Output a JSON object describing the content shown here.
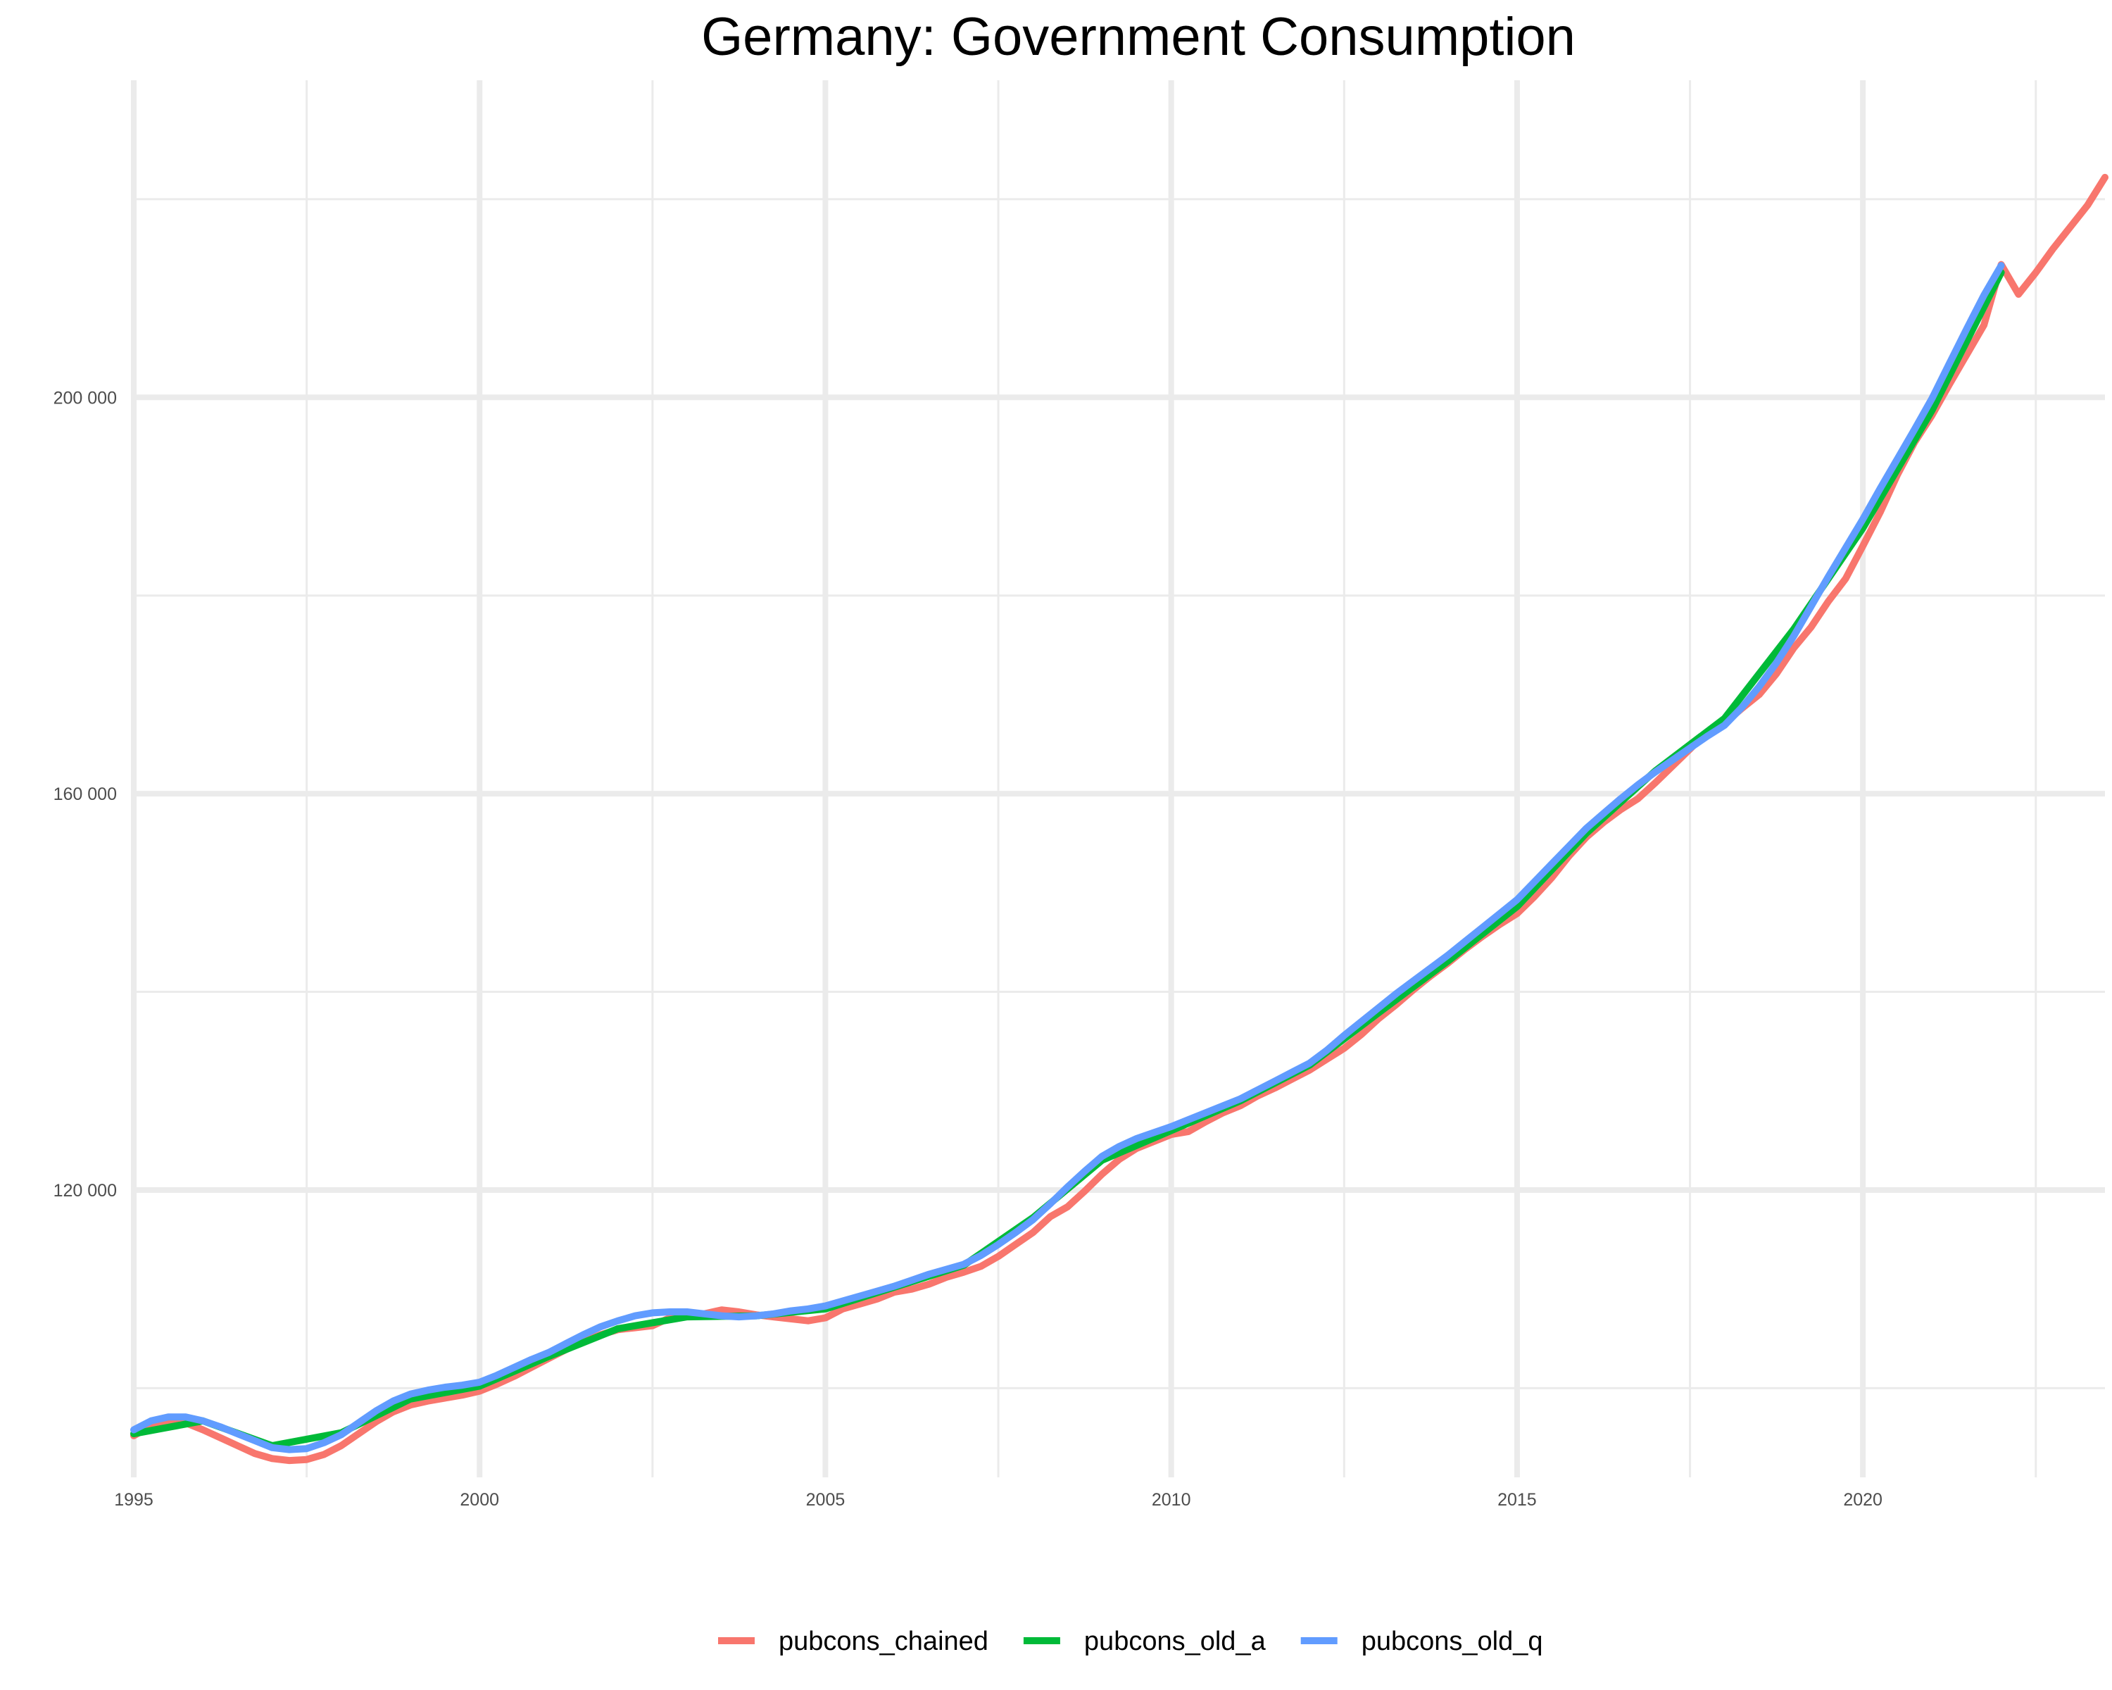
{
  "chart_data": {
    "type": "line",
    "title": "Germany: Government Consumption",
    "xlabel": "",
    "ylabel": "",
    "xlim": [
      1995,
      2023.5
    ],
    "ylim": [
      91000,
      232000
    ],
    "x_ticks": [
      1995,
      2000,
      2005,
      2010,
      2015,
      2020
    ],
    "x_tick_labels": [
      "1995",
      "2000",
      "2005",
      "2010",
      "2015",
      "2020"
    ],
    "x_minor_ticks": [
      1997.5,
      2002.5,
      2007.5,
      2012.5,
      2017.5,
      2022.5
    ],
    "y_ticks": [
      120000,
      160000,
      200000
    ],
    "y_tick_labels": [
      "120 000",
      "160 000",
      "200 000"
    ],
    "y_minor_ticks": [
      100000,
      140000,
      180000,
      220000
    ],
    "grid": true,
    "legend_position": "bottom",
    "series": [
      {
        "name": "pubcons_chained",
        "color": "#F8766D",
        "points": [
          [
            1995.0,
            95200
          ],
          [
            1995.25,
            96200
          ],
          [
            1995.5,
            96800
          ],
          [
            1995.75,
            96500
          ],
          [
            1996.0,
            95800
          ],
          [
            1996.25,
            95000
          ],
          [
            1996.5,
            94200
          ],
          [
            1996.75,
            93400
          ],
          [
            1997.0,
            92900
          ],
          [
            1997.25,
            92700
          ],
          [
            1997.5,
            92800
          ],
          [
            1997.75,
            93300
          ],
          [
            1998.0,
            94200
          ],
          [
            1998.25,
            95400
          ],
          [
            1998.5,
            96600
          ],
          [
            1998.75,
            97600
          ],
          [
            1999.0,
            98300
          ],
          [
            1999.25,
            98700
          ],
          [
            1999.5,
            99000
          ],
          [
            1999.75,
            99300
          ],
          [
            2000.0,
            99700
          ],
          [
            2000.25,
            100400
          ],
          [
            2000.5,
            101200
          ],
          [
            2000.75,
            102100
          ],
          [
            2001.0,
            103000
          ],
          [
            2001.25,
            103900
          ],
          [
            2001.5,
            104700
          ],
          [
            2001.75,
            105400
          ],
          [
            2002.0,
            105900
          ],
          [
            2002.25,
            106100
          ],
          [
            2002.5,
            106300
          ],
          [
            2002.75,
            107100
          ],
          [
            2003.0,
            107300
          ],
          [
            2003.25,
            107500
          ],
          [
            2003.5,
            107900
          ],
          [
            2003.75,
            107700
          ],
          [
            2004.0,
            107400
          ],
          [
            2004.25,
            107200
          ],
          [
            2004.5,
            107000
          ],
          [
            2004.75,
            106800
          ],
          [
            2005.0,
            107100
          ],
          [
            2005.25,
            108000
          ],
          [
            2005.5,
            108500
          ],
          [
            2005.75,
            109000
          ],
          [
            2006.0,
            109700
          ],
          [
            2006.25,
            110000
          ],
          [
            2006.5,
            110500
          ],
          [
            2006.75,
            111200
          ],
          [
            2007.0,
            111700
          ],
          [
            2007.25,
            112300
          ],
          [
            2007.5,
            113300
          ],
          [
            2007.75,
            114500
          ],
          [
            2008.0,
            115700
          ],
          [
            2008.25,
            117300
          ],
          [
            2008.5,
            118300
          ],
          [
            2008.75,
            119900
          ],
          [
            2009.0,
            121600
          ],
          [
            2009.25,
            123100
          ],
          [
            2009.5,
            124200
          ],
          [
            2009.75,
            124900
          ],
          [
            2010.0,
            125600
          ],
          [
            2010.25,
            125900
          ],
          [
            2010.5,
            126900
          ],
          [
            2010.75,
            127800
          ],
          [
            2011.0,
            128500
          ],
          [
            2011.25,
            129500
          ],
          [
            2011.5,
            130300
          ],
          [
            2011.75,
            131200
          ],
          [
            2012.0,
            132100
          ],
          [
            2012.25,
            133200
          ],
          [
            2012.5,
            134300
          ],
          [
            2012.75,
            135700
          ],
          [
            2013.0,
            137300
          ],
          [
            2013.25,
            138700
          ],
          [
            2013.5,
            140200
          ],
          [
            2013.75,
            141600
          ],
          [
            2014.0,
            142900
          ],
          [
            2014.25,
            144300
          ],
          [
            2014.5,
            145600
          ],
          [
            2014.75,
            146800
          ],
          [
            2015.0,
            147900
          ],
          [
            2015.25,
            149600
          ],
          [
            2015.5,
            151500
          ],
          [
            2015.75,
            153700
          ],
          [
            2016.0,
            155600
          ],
          [
            2016.25,
            157100
          ],
          [
            2016.5,
            158400
          ],
          [
            2016.75,
            159500
          ],
          [
            2017.0,
            161100
          ],
          [
            2017.25,
            162800
          ],
          [
            2017.5,
            164500
          ],
          [
            2017.75,
            166200
          ],
          [
            2018.0,
            167100
          ],
          [
            2018.25,
            168600
          ],
          [
            2018.5,
            170000
          ],
          [
            2018.75,
            172100
          ],
          [
            2019.0,
            174700
          ],
          [
            2019.25,
            176800
          ],
          [
            2019.5,
            179400
          ],
          [
            2019.75,
            181700
          ],
          [
            2020.0,
            185000
          ],
          [
            2020.25,
            188400
          ],
          [
            2020.5,
            192200
          ],
          [
            2020.75,
            195500
          ],
          [
            2021.0,
            198200
          ],
          [
            2021.25,
            201300
          ],
          [
            2021.5,
            204300
          ],
          [
            2021.75,
            207300
          ],
          [
            2022.0,
            213400
          ],
          [
            2022.25,
            210400
          ],
          [
            2022.5,
            212600
          ],
          [
            2022.75,
            215000
          ],
          [
            2023.0,
            217200
          ],
          [
            2023.25,
            219400
          ],
          [
            2023.5,
            222200
          ]
        ]
      },
      {
        "name": "pubcons_old_a",
        "color": "#00BA38",
        "points": [
          [
            1995.0,
            95400
          ],
          [
            1996.0,
            96700
          ],
          [
            1997.0,
            94200
          ],
          [
            1998.0,
            95500
          ],
          [
            1999.0,
            98900
          ],
          [
            2000.0,
            100200
          ],
          [
            2001.0,
            103200
          ],
          [
            2002.0,
            106000
          ],
          [
            2003.0,
            107200
          ],
          [
            2004.0,
            107300
          ],
          [
            2005.0,
            108000
          ],
          [
            2006.0,
            110200
          ],
          [
            2007.0,
            112400
          ],
          [
            2008.0,
            117200
          ],
          [
            2009.0,
            123000
          ],
          [
            2010.0,
            126000
          ],
          [
            2011.0,
            129000
          ],
          [
            2012.0,
            132600
          ],
          [
            2013.0,
            137900
          ],
          [
            2014.0,
            143100
          ],
          [
            2015.0,
            148600
          ],
          [
            2016.0,
            156000
          ],
          [
            2017.0,
            162300
          ],
          [
            2018.0,
            167600
          ],
          [
            2019.0,
            176600
          ],
          [
            2020.0,
            186800
          ],
          [
            2021.0,
            198700
          ],
          [
            2022.0,
            212600
          ]
        ]
      },
      {
        "name": "pubcons_old_q",
        "color": "#619CFF",
        "points": [
          [
            1995.0,
            95800
          ],
          [
            1995.25,
            96700
          ],
          [
            1995.5,
            97100
          ],
          [
            1995.75,
            97100
          ],
          [
            1996.0,
            96700
          ],
          [
            1996.25,
            96100
          ],
          [
            1996.5,
            95400
          ],
          [
            1996.75,
            94700
          ],
          [
            1997.0,
            94000
          ],
          [
            1997.25,
            93800
          ],
          [
            1997.5,
            93900
          ],
          [
            1997.75,
            94500
          ],
          [
            1998.0,
            95300
          ],
          [
            1998.25,
            96500
          ],
          [
            1998.5,
            97700
          ],
          [
            1998.75,
            98700
          ],
          [
            1999.0,
            99400
          ],
          [
            1999.25,
            99800
          ],
          [
            1999.5,
            100100
          ],
          [
            1999.75,
            100300
          ],
          [
            2000.0,
            100600
          ],
          [
            2000.25,
            101300
          ],
          [
            2000.5,
            102100
          ],
          [
            2000.75,
            102900
          ],
          [
            2001.0,
            103600
          ],
          [
            2001.25,
            104500
          ],
          [
            2001.5,
            105400
          ],
          [
            2001.75,
            106200
          ],
          [
            2002.0,
            106800
          ],
          [
            2002.25,
            107300
          ],
          [
            2002.5,
            107600
          ],
          [
            2002.75,
            107700
          ],
          [
            2003.0,
            107700
          ],
          [
            2003.25,
            107500
          ],
          [
            2003.5,
            107300
          ],
          [
            2003.75,
            107200
          ],
          [
            2004.0,
            107300
          ],
          [
            2004.25,
            107500
          ],
          [
            2004.5,
            107800
          ],
          [
            2004.75,
            108000
          ],
          [
            2005.0,
            108300
          ],
          [
            2005.25,
            108800
          ],
          [
            2005.5,
            109300
          ],
          [
            2005.75,
            109800
          ],
          [
            2006.0,
            110300
          ],
          [
            2006.25,
            110900
          ],
          [
            2006.5,
            111500
          ],
          [
            2006.75,
            112000
          ],
          [
            2007.0,
            112500
          ],
          [
            2007.25,
            113400
          ],
          [
            2007.5,
            114500
          ],
          [
            2007.75,
            115700
          ],
          [
            2008.0,
            117000
          ],
          [
            2008.25,
            118600
          ],
          [
            2008.5,
            120300
          ],
          [
            2008.75,
            121900
          ],
          [
            2009.0,
            123400
          ],
          [
            2009.25,
            124400
          ],
          [
            2009.5,
            125200
          ],
          [
            2009.75,
            125800
          ],
          [
            2010.0,
            126400
          ],
          [
            2010.25,
            127100
          ],
          [
            2010.5,
            127800
          ],
          [
            2010.75,
            128500
          ],
          [
            2011.0,
            129200
          ],
          [
            2011.25,
            130100
          ],
          [
            2011.5,
            131000
          ],
          [
            2011.75,
            131900
          ],
          [
            2012.0,
            132800
          ],
          [
            2012.25,
            134100
          ],
          [
            2012.5,
            135600
          ],
          [
            2012.75,
            137000
          ],
          [
            2013.0,
            138400
          ],
          [
            2013.25,
            139800
          ],
          [
            2013.5,
            141100
          ],
          [
            2013.75,
            142400
          ],
          [
            2014.0,
            143700
          ],
          [
            2014.25,
            145100
          ],
          [
            2014.5,
            146500
          ],
          [
            2014.75,
            147900
          ],
          [
            2015.0,
            149300
          ],
          [
            2015.25,
            151100
          ],
          [
            2015.5,
            152900
          ],
          [
            2015.75,
            154700
          ],
          [
            2016.0,
            156500
          ],
          [
            2016.25,
            158000
          ],
          [
            2016.5,
            159500
          ],
          [
            2016.75,
            160900
          ],
          [
            2017.0,
            162200
          ],
          [
            2017.25,
            163400
          ],
          [
            2017.5,
            164600
          ],
          [
            2017.75,
            165800
          ],
          [
            2018.0,
            166900
          ],
          [
            2018.25,
            168700
          ],
          [
            2018.5,
            170800
          ],
          [
            2018.75,
            173200
          ],
          [
            2019.0,
            175900
          ],
          [
            2019.25,
            178900
          ],
          [
            2019.5,
            181900
          ],
          [
            2019.75,
            184800
          ],
          [
            2020.0,
            187700
          ],
          [
            2020.25,
            190800
          ],
          [
            2020.5,
            193800
          ],
          [
            2020.75,
            196800
          ],
          [
            2021.0,
            199900
          ],
          [
            2021.25,
            203400
          ],
          [
            2021.5,
            206900
          ],
          [
            2021.75,
            210300
          ],
          [
            2022.0,
            213300
          ]
        ]
      }
    ]
  }
}
